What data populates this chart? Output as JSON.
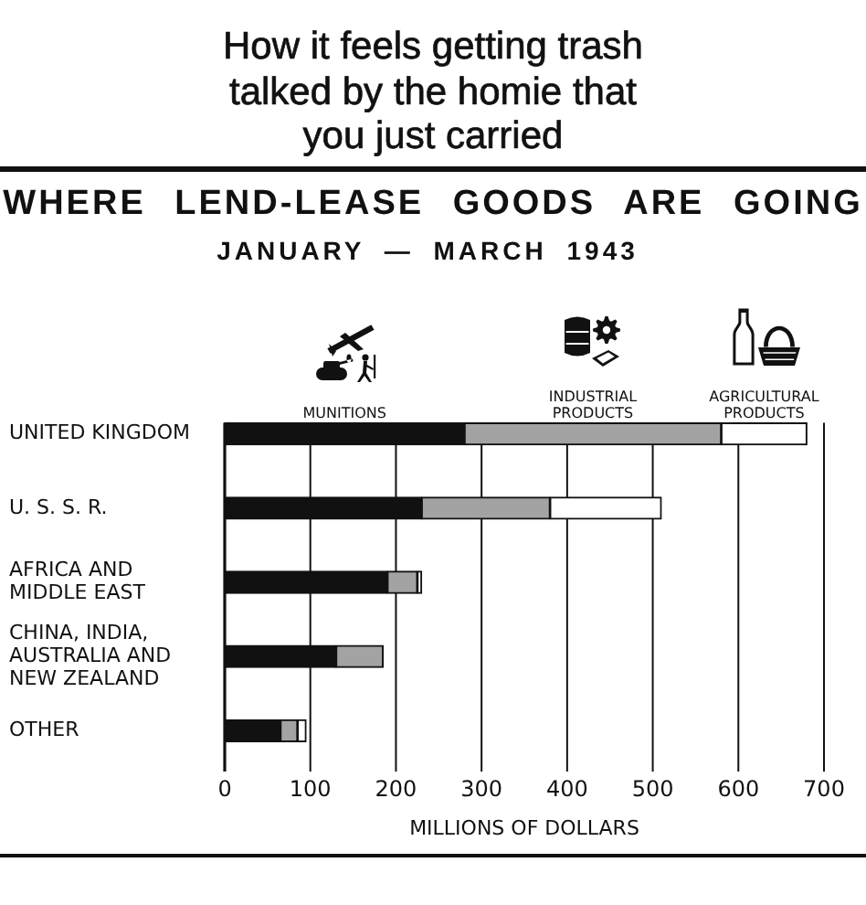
{
  "chart_data": {
    "type": "bar",
    "orientation": "horizontal",
    "stacked": true,
    "title": "WHERE LEND-LEASE GOODS ARE GOING",
    "subtitle": "JANUARY — MARCH 1943",
    "xlabel": "MILLIONS OF DOLLARS",
    "categories": [
      "UNITED KINGDOM",
      "U. S. S. R.",
      "AFRICA AND MIDDLE EAST",
      "CHINA, INDIA, AUSTRALIA AND NEW ZEALAND",
      "OTHER"
    ],
    "series": [
      {
        "name": "MUNITIONS",
        "color": "#111111",
        "values": [
          280,
          230,
          190,
          130,
          65
        ]
      },
      {
        "name": "INDUSTRIAL PRODUCTS",
        "color": "#a3a3a3",
        "values": [
          300,
          150,
          35,
          55,
          20
        ]
      },
      {
        "name": "AGRICULTURAL PRODUCTS",
        "color": "#ffffff",
        "values": [
          100,
          130,
          5,
          0,
          10
        ]
      }
    ],
    "xlim": [
      0,
      700
    ],
    "xticks": [
      0,
      100,
      200,
      300,
      400,
      500,
      600,
      700
    ],
    "grid": "x",
    "legend": "top",
    "annotations": [
      "How it feels getting trash talked by the homie that you just carried"
    ]
  }
}
